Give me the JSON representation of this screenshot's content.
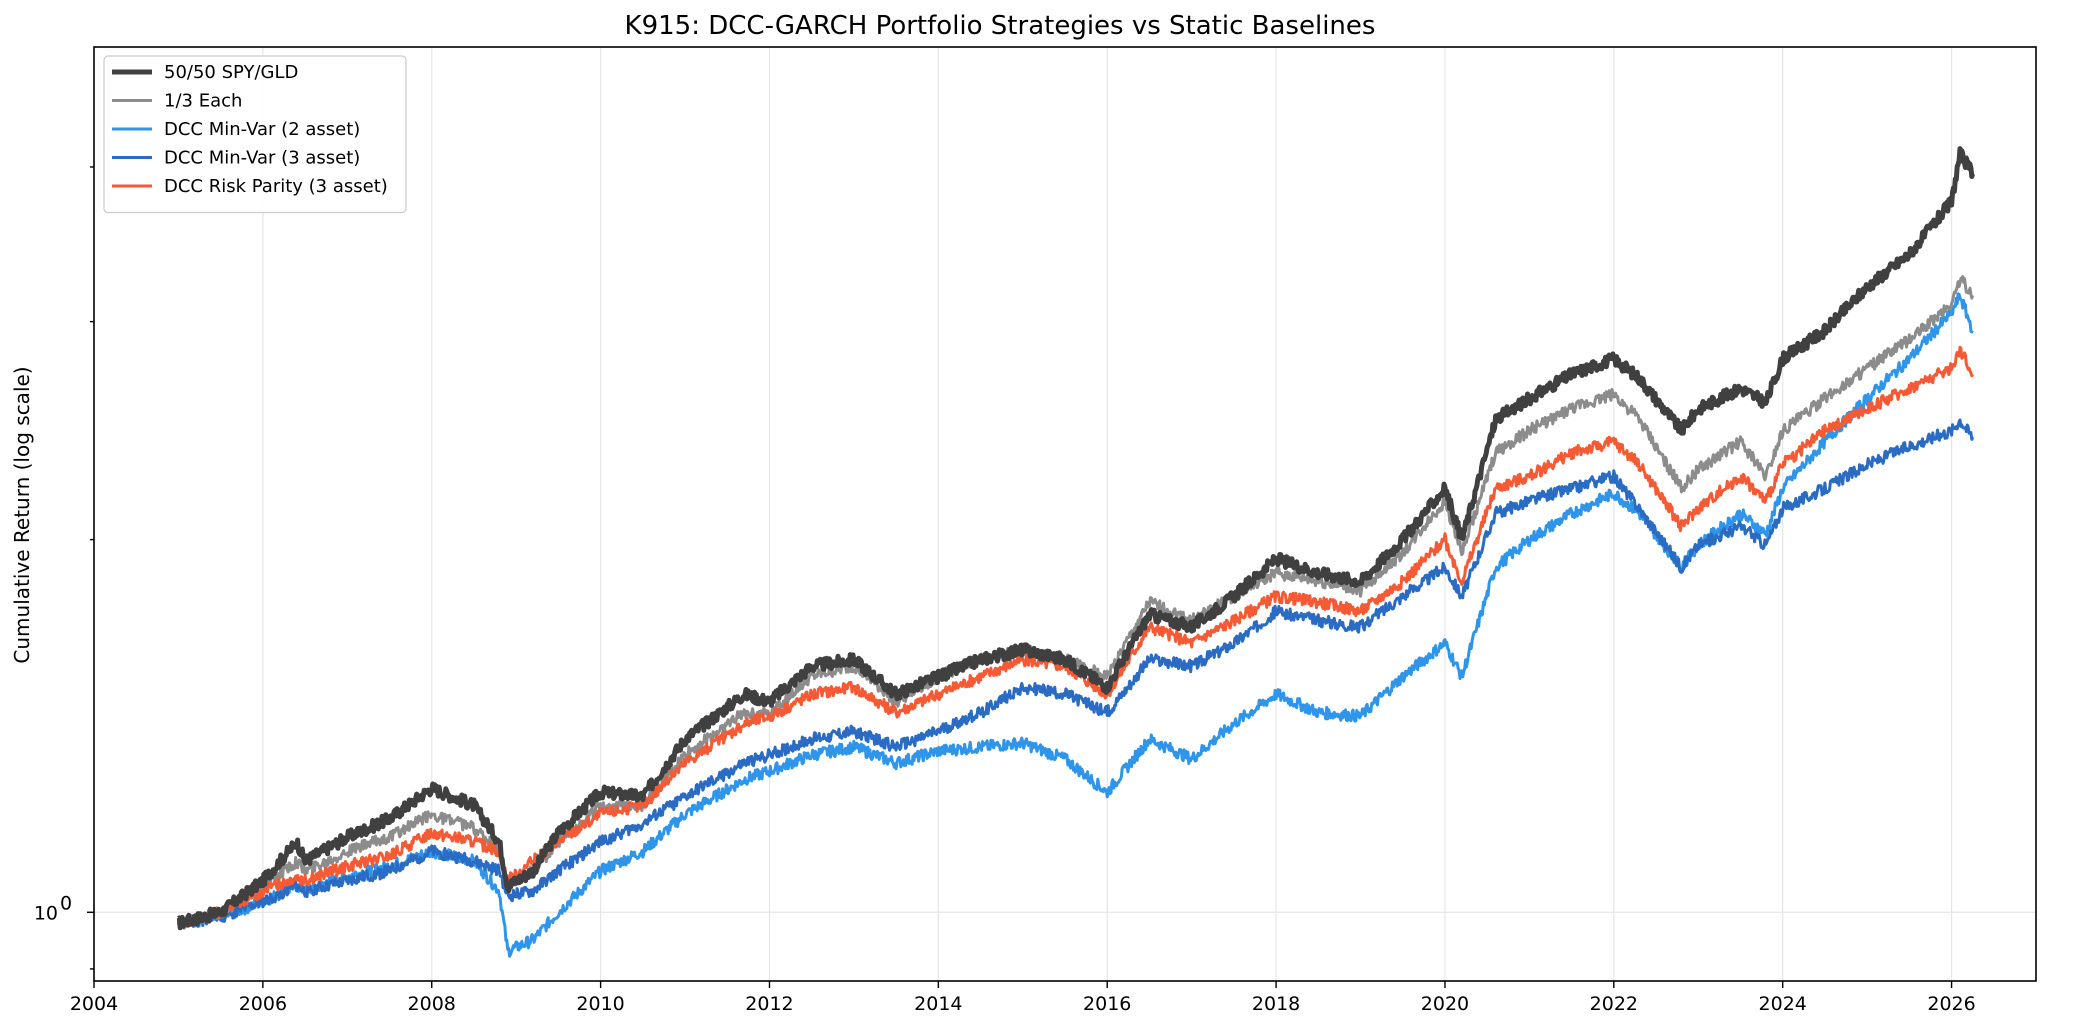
{
  "chart_data": {
    "type": "line",
    "title": "K915: DCC-GARCH Portfolio Strategies vs Static Baselines",
    "xlabel": "",
    "ylabel": "Cumulative Return (log scale)",
    "yscale": "log",
    "xlim": [
      2004.0,
      2027.0
    ],
    "ylim": [
      0.88,
      5.0
    ],
    "grid": true,
    "legend_position": "top-left",
    "x_ticks": [
      2004,
      2006,
      2008,
      2010,
      2012,
      2014,
      2016,
      2018,
      2020,
      2022,
      2024,
      2026
    ],
    "x_tick_labels": [
      "2004",
      "2006",
      "2008",
      "2010",
      "2012",
      "2014",
      "2016",
      "2018",
      "2020",
      "2022",
      "2024",
      "2026"
    ],
    "y_tick_values": [
      1.0
    ],
    "y_tick_labels_base": [
      "10"
    ],
    "y_tick_labels_exp": [
      "0"
    ],
    "y_minor_ticks": [
      0.9,
      2,
      3,
      4
    ],
    "x": [
      2005.0,
      2005.5,
      2006.0,
      2006.4,
      2006.5,
      2007.0,
      2007.5,
      2008.0,
      2008.5,
      2008.8,
      2008.9,
      2009.2,
      2009.5,
      2010.0,
      2010.5,
      2011.0,
      2011.7,
      2012.0,
      2012.5,
      2013.0,
      2013.5,
      2014.0,
      2014.5,
      2015.0,
      2015.5,
      2016.0,
      2016.5,
      2017.0,
      2017.5,
      2018.0,
      2018.5,
      2019.0,
      2019.5,
      2020.0,
      2020.2,
      2020.6,
      2021.0,
      2021.5,
      2022.0,
      2022.3,
      2022.8,
      2023.0,
      2023.5,
      2023.8,
      2024.0,
      2024.5,
      2025.0,
      2025.5,
      2026.0,
      2026.1,
      2026.25
    ],
    "series": [
      {
        "name": "50/50 SPY/GLD",
        "color": "#404040",
        "values": [
          0.98,
          1.0,
          1.06,
          1.14,
          1.1,
          1.15,
          1.19,
          1.26,
          1.22,
          1.14,
          1.05,
          1.08,
          1.16,
          1.25,
          1.24,
          1.38,
          1.5,
          1.48,
          1.58,
          1.6,
          1.5,
          1.55,
          1.6,
          1.63,
          1.6,
          1.52,
          1.74,
          1.7,
          1.8,
          1.93,
          1.88,
          1.85,
          2.0,
          2.2,
          2.0,
          2.5,
          2.6,
          2.72,
          2.8,
          2.7,
          2.45,
          2.55,
          2.65,
          2.58,
          2.8,
          2.95,
          3.2,
          3.4,
          3.75,
          4.1,
          3.95
        ]
      },
      {
        "name": "1/3 Each",
        "color": "#8c8c8c",
        "values": [
          0.98,
          1.0,
          1.05,
          1.1,
          1.08,
          1.12,
          1.15,
          1.2,
          1.17,
          1.12,
          1.05,
          1.08,
          1.14,
          1.22,
          1.22,
          1.34,
          1.45,
          1.45,
          1.55,
          1.58,
          1.48,
          1.55,
          1.6,
          1.63,
          1.6,
          1.55,
          1.78,
          1.72,
          1.8,
          1.88,
          1.85,
          1.82,
          1.95,
          2.15,
          1.95,
          2.35,
          2.45,
          2.55,
          2.62,
          2.5,
          2.2,
          2.28,
          2.4,
          2.25,
          2.45,
          2.6,
          2.75,
          2.9,
          3.1,
          3.25,
          3.15
        ]
      },
      {
        "name": "DCC Min-Var (2 asset)",
        "color": "#2e95ea",
        "values": [
          0.98,
          0.99,
          1.02,
          1.05,
          1.04,
          1.07,
          1.09,
          1.12,
          1.1,
          1.04,
          0.93,
          0.95,
          1.0,
          1.08,
          1.12,
          1.2,
          1.28,
          1.3,
          1.34,
          1.36,
          1.32,
          1.35,
          1.36,
          1.37,
          1.33,
          1.25,
          1.38,
          1.33,
          1.42,
          1.5,
          1.45,
          1.44,
          1.55,
          1.65,
          1.55,
          1.9,
          2.0,
          2.1,
          2.18,
          2.1,
          1.9,
          1.98,
          2.1,
          2.02,
          2.2,
          2.4,
          2.6,
          2.8,
          3.05,
          3.15,
          2.95
        ]
      },
      {
        "name": "DCC Min-Var (3 asset)",
        "color": "#2a6cc4",
        "values": [
          0.98,
          0.99,
          1.02,
          1.05,
          1.04,
          1.06,
          1.08,
          1.12,
          1.1,
          1.08,
          1.03,
          1.04,
          1.08,
          1.14,
          1.18,
          1.24,
          1.32,
          1.34,
          1.38,
          1.4,
          1.36,
          1.4,
          1.45,
          1.52,
          1.5,
          1.45,
          1.6,
          1.58,
          1.65,
          1.75,
          1.72,
          1.7,
          1.8,
          1.9,
          1.8,
          2.1,
          2.15,
          2.2,
          2.25,
          2.12,
          1.9,
          1.98,
          2.05,
          1.98,
          2.12,
          2.2,
          2.3,
          2.38,
          2.45,
          2.5,
          2.42
        ]
      },
      {
        "name": "DCC Risk Parity (3 asset)",
        "color": "#f55a34",
        "values": [
          0.98,
          1.0,
          1.04,
          1.07,
          1.06,
          1.09,
          1.11,
          1.16,
          1.14,
          1.12,
          1.06,
          1.1,
          1.14,
          1.2,
          1.22,
          1.32,
          1.42,
          1.44,
          1.5,
          1.52,
          1.45,
          1.5,
          1.55,
          1.6,
          1.58,
          1.5,
          1.7,
          1.65,
          1.72,
          1.8,
          1.78,
          1.75,
          1.85,
          2.0,
          1.85,
          2.2,
          2.25,
          2.35,
          2.4,
          2.3,
          2.05,
          2.12,
          2.25,
          2.15,
          2.3,
          2.45,
          2.55,
          2.65,
          2.75,
          2.85,
          2.72
        ]
      }
    ]
  }
}
